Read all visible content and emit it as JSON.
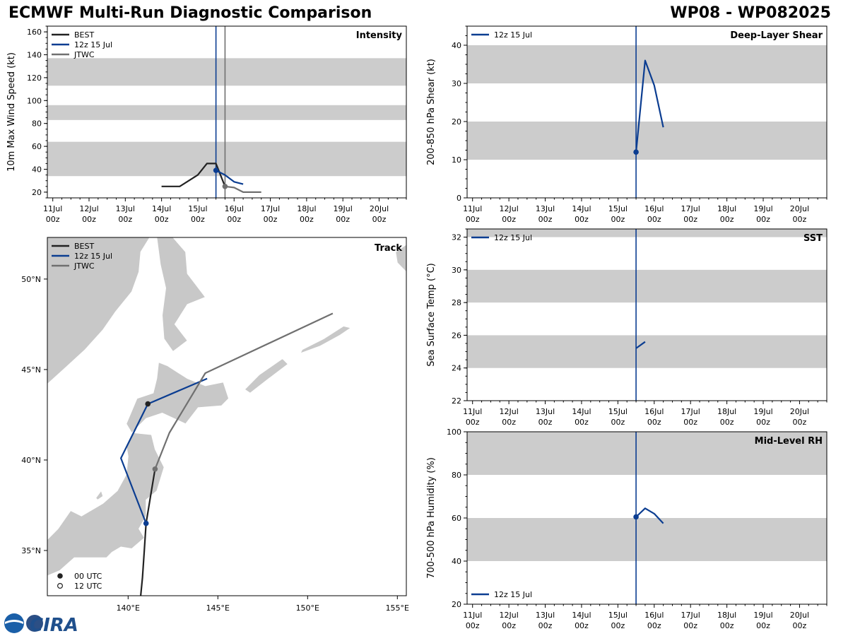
{
  "header": {
    "title": "ECMWF Multi-Run Diagnostic Comparison",
    "storm_id": "WP08 - WP082025"
  },
  "colors": {
    "best": "#222222",
    "ecmwf": "#0b3d91",
    "jtwc": "#707070",
    "band": "#cccccc",
    "land": "#c8c8c8"
  },
  "time_axis": {
    "labels": [
      [
        "11Jul",
        "00z"
      ],
      [
        "12Jul",
        "00z"
      ],
      [
        "13Jul",
        "00z"
      ],
      [
        "14Jul",
        "00z"
      ],
      [
        "15Jul",
        "00z"
      ],
      [
        "16Jul",
        "00z"
      ],
      [
        "17Jul",
        "00z"
      ],
      [
        "18Jul",
        "00z"
      ],
      [
        "19Jul",
        "00z"
      ],
      [
        "20Jul",
        "00z"
      ]
    ],
    "range_days": [
      10.85,
      20.75
    ],
    "init_day": 15.5,
    "jtwc_day": 15.75
  },
  "track_legend": {
    "utc00": "00 UTC",
    "utc12": "12 UTC"
  },
  "logo": {
    "text": "CIRA"
  },
  "chart_data": [
    {
      "id": "intensity",
      "type": "line",
      "title": "Intensity",
      "ylabel": "10m Max Wind Speed (kt)",
      "ylim": [
        15,
        165
      ],
      "yticks": [
        20,
        40,
        60,
        80,
        100,
        120,
        140,
        160
      ],
      "bands": [
        [
          34,
          64
        ],
        [
          83,
          96
        ],
        [
          113,
          137
        ]
      ],
      "legend": [
        "BEST",
        "12z 15 Jul",
        "JTWC"
      ],
      "series": [
        {
          "name": "BEST",
          "color_key": "best",
          "x": [
            14.0,
            14.5,
            15.0,
            15.25,
            15.5,
            15.75
          ],
          "y": [
            25,
            25,
            35,
            45,
            45,
            25
          ]
        },
        {
          "name": "12z 15 Jul",
          "color_key": "ecmwf",
          "x": [
            15.5,
            15.75,
            16.0,
            16.25
          ],
          "y": [
            39,
            35,
            29,
            27
          ],
          "marker_first": true
        },
        {
          "name": "JTWC",
          "color_key": "jtwc",
          "x": [
            15.75,
            16.0,
            16.25,
            16.5,
            16.75
          ],
          "y": [
            25,
            24,
            20,
            20,
            20
          ],
          "marker_first": true
        }
      ],
      "vlines": [
        {
          "x": 15.5,
          "color_key": "ecmwf"
        },
        {
          "x": 15.75,
          "color_key": "jtwc"
        }
      ]
    },
    {
      "id": "shear",
      "type": "line",
      "title": "Deep-Layer Shear",
      "ylabel": "200-850 hPa Shear (kt)",
      "ylim": [
        0,
        45
      ],
      "yticks": [
        0,
        10,
        20,
        30,
        40
      ],
      "bands": [
        [
          10,
          20
        ],
        [
          30,
          40
        ]
      ],
      "legend": [
        "12z 15 Jul"
      ],
      "series": [
        {
          "name": "12z 15 Jul",
          "color_key": "ecmwf",
          "x": [
            15.5,
            15.75,
            16.0,
            16.25
          ],
          "y": [
            12,
            36,
            29.5,
            18.5
          ],
          "marker_first": true
        }
      ],
      "vlines": [
        {
          "x": 15.5,
          "color_key": "ecmwf"
        }
      ]
    },
    {
      "id": "sst",
      "type": "line",
      "title": "SST",
      "ylabel": "Sea Surface Temp (°C)",
      "ylim": [
        22,
        32.5
      ],
      "yticks": [
        22,
        24,
        26,
        28,
        30,
        32
      ],
      "bands": [
        [
          24,
          26
        ],
        [
          28,
          30
        ],
        [
          32,
          32.5
        ]
      ],
      "legend": [
        "12z 15 Jul"
      ],
      "series": [
        {
          "name": "12z 15 Jul",
          "color_key": "ecmwf",
          "x": [
            15.5,
            15.75
          ],
          "y": [
            25.2,
            25.6
          ],
          "marker_first": false
        }
      ],
      "vlines": [
        {
          "x": 15.5,
          "color_key": "ecmwf"
        }
      ]
    },
    {
      "id": "rh",
      "type": "line",
      "title": "Mid-Level RH",
      "ylabel": "700-500 hPa Humidity (%)",
      "ylim": [
        20,
        100
      ],
      "yticks": [
        20,
        40,
        60,
        80,
        100
      ],
      "bands": [
        [
          40,
          60
        ],
        [
          80,
          100
        ]
      ],
      "legend": [
        "12z 15 Jul"
      ],
      "series": [
        {
          "name": "12z 15 Jul",
          "color_key": "ecmwf",
          "x": [
            15.5,
            15.75,
            16.0,
            16.25
          ],
          "y": [
            60.5,
            64.5,
            62,
            57.5
          ],
          "marker_first": true
        }
      ],
      "vlines": [
        {
          "x": 15.5,
          "color_key": "ecmwf"
        }
      ]
    },
    {
      "id": "track",
      "type": "scatter",
      "title": "Track",
      "lon_range": [
        135.5,
        155.5
      ],
      "lat_range": [
        32.5,
        52.3
      ],
      "xticks": [
        140,
        145,
        150,
        155
      ],
      "xtick_labels": [
        "140°E",
        "145°E",
        "150°E",
        "155°E"
      ],
      "yticks": [
        35,
        40,
        45,
        50
      ],
      "ytick_labels": [
        "35°N",
        "40°N",
        "45°N",
        "50°N"
      ],
      "legend": [
        "BEST",
        "12z 15 Jul",
        "JTWC"
      ],
      "series": [
        {
          "name": "BEST",
          "color_key": "best",
          "lon": [
            140.7,
            140.8,
            140.9,
            141.0,
            141.3,
            141.5
          ],
          "lat": [
            32.5,
            33.5,
            35.0,
            36.5,
            38.3,
            39.5
          ]
        },
        {
          "name": "12z 15 Jul",
          "color_key": "ecmwf",
          "lon": [
            141.0,
            139.6,
            141.1,
            144.4
          ],
          "lat": [
            36.5,
            40.1,
            43.1,
            44.5
          ]
        },
        {
          "name": "JTWC",
          "color_key": "jtwc",
          "lon": [
            141.5,
            142.3,
            144.3,
            151.4
          ],
          "lat": [
            39.5,
            41.5,
            44.8,
            48.1
          ]
        }
      ],
      "points_00utc": [
        {
          "lon": 141.1,
          "lat": 43.1,
          "color_key": "best"
        },
        {
          "lon": 141.0,
          "lat": 36.5,
          "color_key": "ecmwf"
        },
        {
          "lon": 141.5,
          "lat": 39.5,
          "color_key": "jtwc"
        }
      ],
      "utc_legend": [
        "00 UTC",
        "12 UTC"
      ]
    }
  ]
}
